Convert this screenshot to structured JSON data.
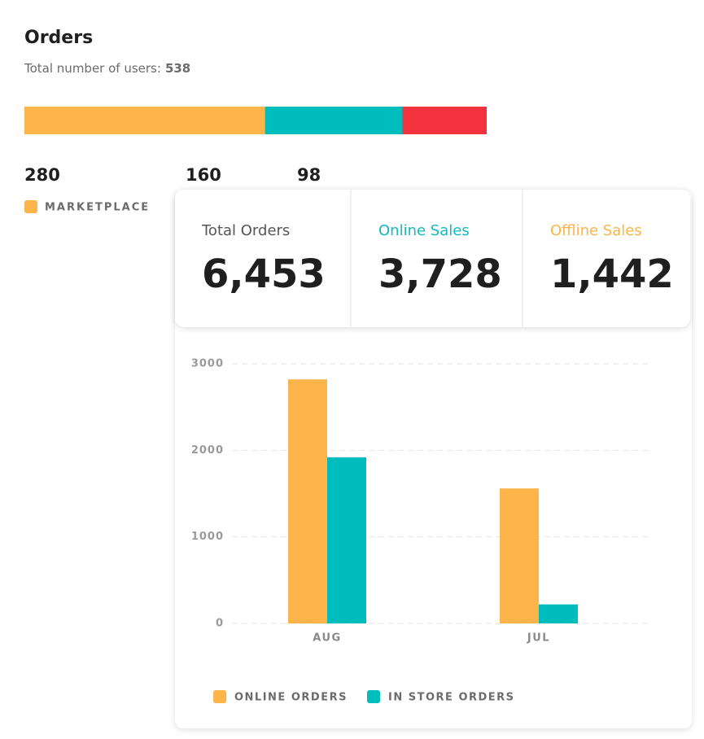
{
  "orders": {
    "title": "Orders",
    "subtitle_label": "Total number of users:",
    "total": 538,
    "segments": [
      {
        "value": 280,
        "color": "#FDB44B"
      },
      {
        "value": 160,
        "color": "#00BDBD"
      },
      {
        "value": 98,
        "color": "#F5333F"
      }
    ],
    "legend": [
      {
        "label": "MARKETPLACE",
        "color": "#FDB44B"
      }
    ]
  },
  "stats": [
    {
      "label": "Total Orders",
      "value": "6,453",
      "color": "#555555"
    },
    {
      "label": "Online Sales",
      "value": "3,728",
      "color": "#14B8C0"
    },
    {
      "label": "Offline Sales",
      "value": "1,442",
      "color": "#F9B54A"
    }
  ],
  "chart_data": {
    "type": "bar",
    "categories": [
      "AUG",
      "JUL"
    ],
    "series": [
      {
        "name": "ONLINE ORDERS",
        "color": "#FDB44B",
        "values": [
          2820,
          1560
        ]
      },
      {
        "name": "IN STORE ORDERS",
        "color": "#00BDBD",
        "values": [
          1920,
          220
        ]
      }
    ],
    "ylim": [
      0,
      3000
    ],
    "yticks": [
      0,
      1000,
      2000,
      3000
    ],
    "grid": true
  }
}
